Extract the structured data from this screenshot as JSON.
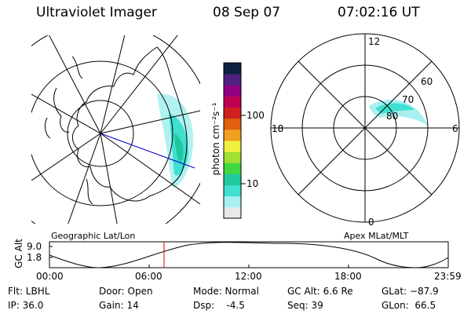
{
  "header": {
    "title": "Ultraviolet Imager",
    "date": "08 Sep 07",
    "time": "07:02:16 UT"
  },
  "colorbar": {
    "unit_label": "photon cm⁻²s⁻¹",
    "ticks": [
      "100",
      "10"
    ],
    "colors": [
      "#e8e8e8",
      "#a8f0f0",
      "#40e0d0",
      "#20c8a0",
      "#40d840",
      "#a0e030",
      "#f0f040",
      "#f0a020",
      "#e06010",
      "#d02020",
      "#c00050",
      "#900080",
      "#502080",
      "#102040"
    ]
  },
  "left_map": {
    "caption": "Geographic Lat/Lon"
  },
  "right_map": {
    "caption": "Apex MLat/MLT",
    "mlt_labels": {
      "top": "12",
      "left": "18",
      "right": "6",
      "bottom": "0"
    },
    "lat_labels": [
      "60",
      "70",
      "80"
    ]
  },
  "altitude_plot": {
    "ylabel": "GC Alt",
    "yticks": [
      "9.0",
      "1.8"
    ],
    "xticks": [
      "00:00",
      "06:00",
      "12:00",
      "18:00",
      "23:59"
    ],
    "marker_time": "07:02"
  },
  "footer": {
    "filter": "Flt: LBHL",
    "ip": "IP: 36.0",
    "door": "Door: Open",
    "gain": "Gain: 14",
    "mode": "Mode: Normal",
    "dsp": "Dsp:    -4.5",
    "gc_alt": "GC Alt: 6.6 Re",
    "seq": "Seq: 39",
    "glat": "GLat: −87.9",
    "glon": "GLon:  66.5"
  },
  "colors": {
    "track": "#0000cc",
    "marker": "#cc0000",
    "aurora_main": "#40e0d0",
    "aurora_light": "#a8f0f0"
  }
}
